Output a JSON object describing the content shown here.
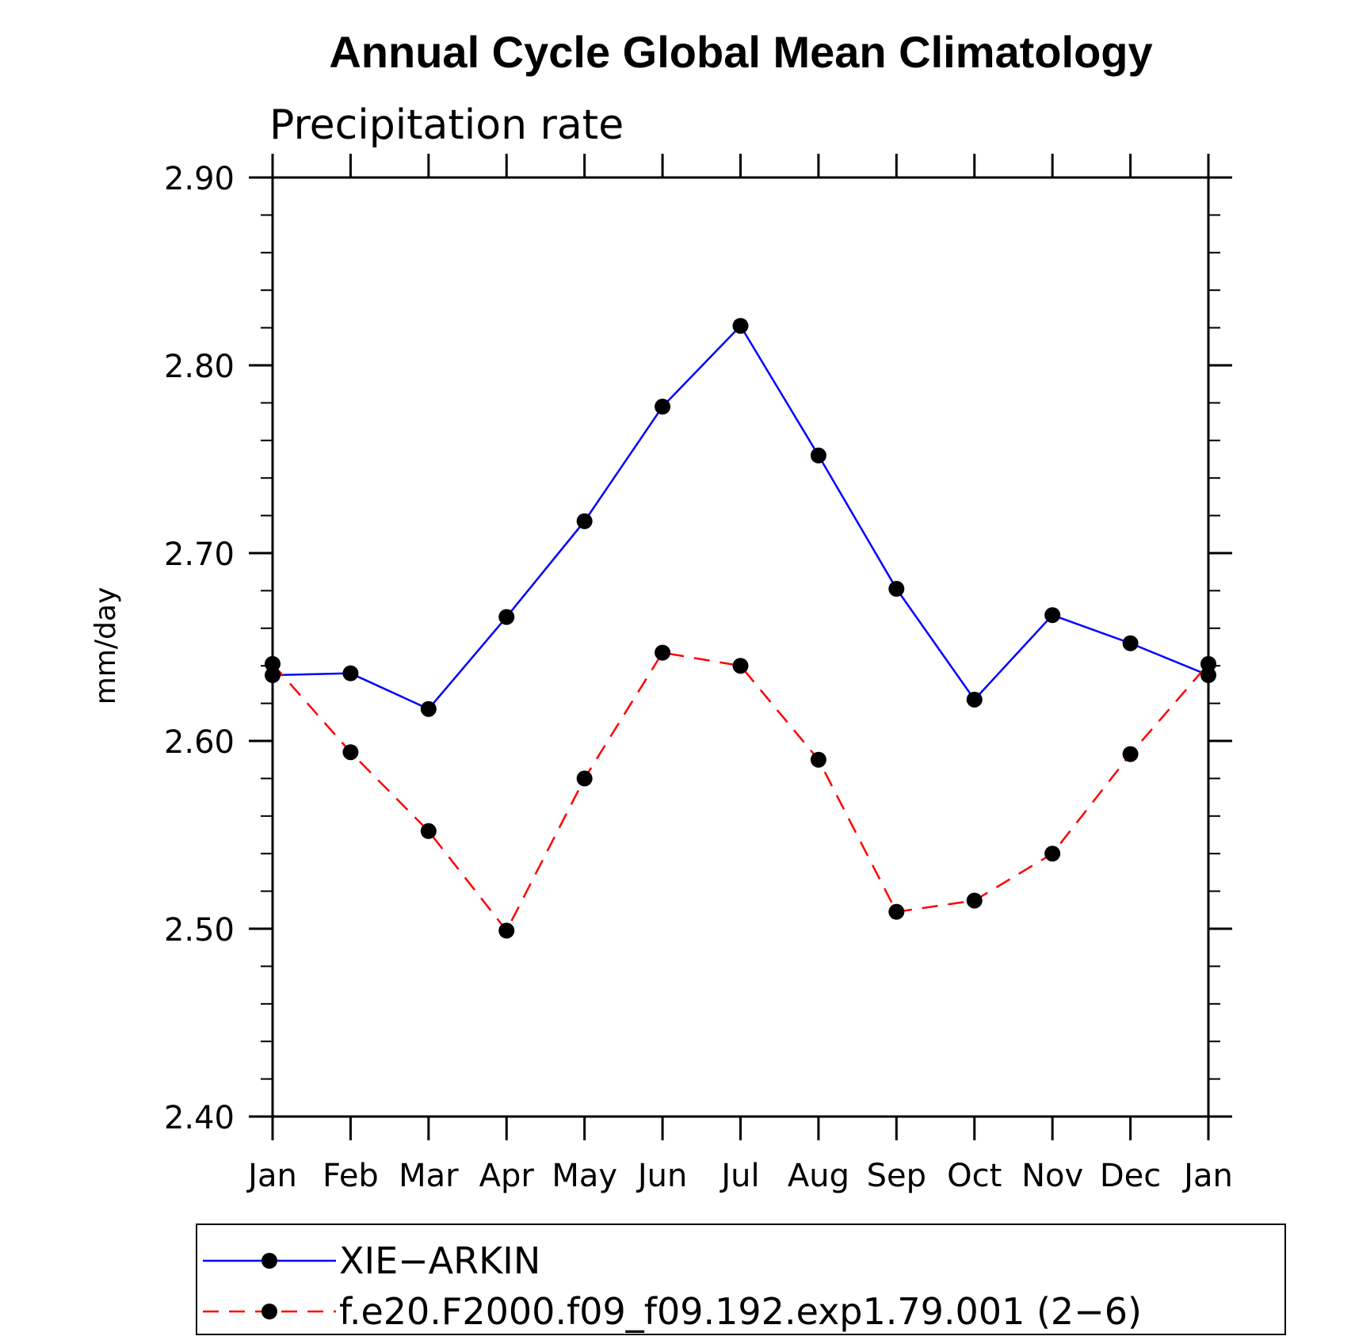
{
  "chart_data": {
    "type": "line",
    "title": "Annual Cycle Global Mean Climatology",
    "subtitle": "Precipitation rate",
    "xlabel": "",
    "ylabel": "mm/day",
    "ylim": [
      2.4,
      2.9
    ],
    "yticks": [
      "2.40",
      "2.50",
      "2.60",
      "2.70",
      "2.80",
      "2.90"
    ],
    "categories": [
      "Jan",
      "Feb",
      "Mar",
      "Apr",
      "May",
      "Jun",
      "Jul",
      "Aug",
      "Sep",
      "Oct",
      "Nov",
      "Dec",
      "Jan"
    ],
    "grid": false,
    "legend_position": "bottom",
    "series": [
      {
        "name": "XIE−ARKIN",
        "color": "#0000ff",
        "dash": "solid",
        "values": [
          2.635,
          2.636,
          2.617,
          2.666,
          2.717,
          2.778,
          2.821,
          2.752,
          2.681,
          2.622,
          2.667,
          2.652,
          2.635
        ]
      },
      {
        "name": "f.e20.F2000.f09_f09.192.exp1.79.001 (2−6)",
        "color": "#ff0000",
        "dash": "dashed",
        "values": [
          2.641,
          2.594,
          2.552,
          2.499,
          2.58,
          2.647,
          2.64,
          2.59,
          2.509,
          2.515,
          2.54,
          2.593,
          2.641
        ]
      }
    ]
  }
}
